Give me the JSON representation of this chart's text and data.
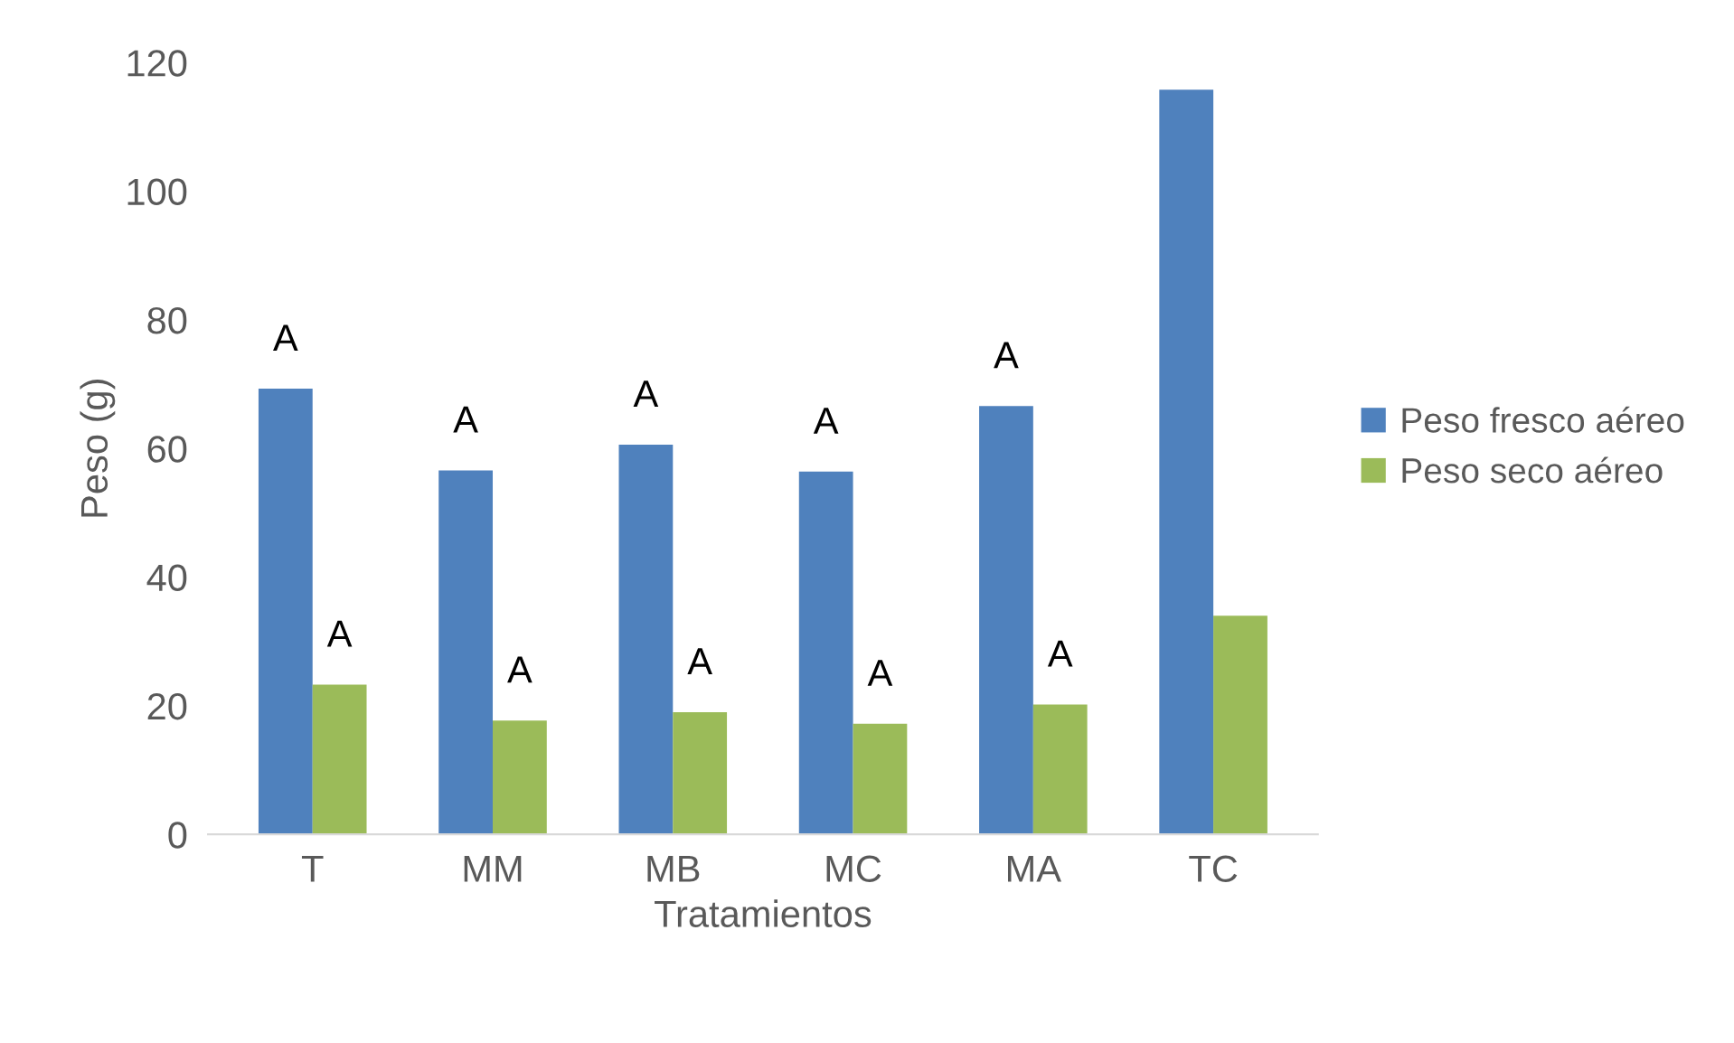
{
  "chart_data": {
    "type": "bar",
    "xlabel": "Tratamientos",
    "ylabel": "Peso (g)",
    "categories": [
      "T",
      "MM",
      "MB",
      "MC",
      "MA",
      "TC"
    ],
    "series": [
      {
        "name": "Peso fresco aéreo",
        "color": "#4f81bd",
        "values": [
          69.3,
          56.6,
          60.6,
          56.4,
          66.6,
          115.8
        ]
      },
      {
        "name": "Peso seco aéreo",
        "color": "#9bbb59",
        "values": [
          23.3,
          17.7,
          19.0,
          17.2,
          20.2,
          34.0
        ]
      }
    ],
    "ylim": [
      0,
      120
    ],
    "yticks": [
      0,
      20,
      40,
      60,
      80,
      100,
      120
    ],
    "grid": false,
    "legend": "right",
    "annotations": [
      {
        "text": "A",
        "x": "T",
        "y": 69.3
      },
      {
        "text": "A",
        "x": "T",
        "y": 23.3
      },
      {
        "text": "A",
        "x": "MM",
        "y": 56.6
      },
      {
        "text": "A",
        "x": "MM",
        "y": 17.7
      },
      {
        "text": "A",
        "x": "MB",
        "y": 60.6
      },
      {
        "text": "A",
        "x": "MB",
        "y": 19.0
      },
      {
        "text": "A",
        "x": "MC",
        "y": 56.4
      },
      {
        "text": "A",
        "x": "MC",
        "y": 17.2
      },
      {
        "text": "A",
        "x": "MA",
        "y": 66.6
      },
      {
        "text": "A",
        "x": "MA",
        "y": 20.2
      }
    ]
  }
}
